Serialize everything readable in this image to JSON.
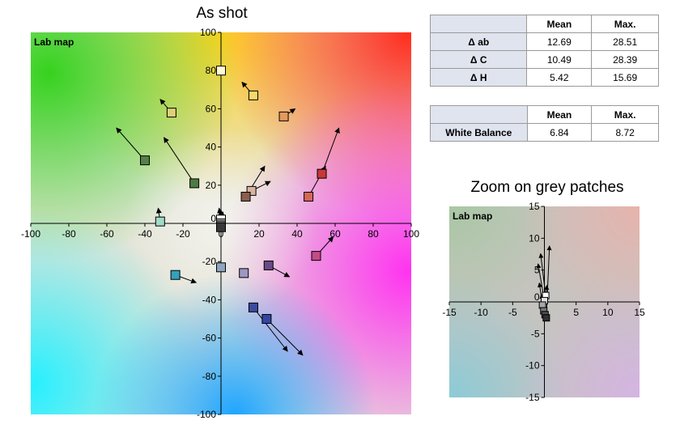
{
  "charts": {
    "main": {
      "title": "As shot",
      "plot_label": "Lab map",
      "x_ticks": [
        "-100",
        "-80",
        "-60",
        "-40",
        "-20",
        "0",
        "20",
        "40",
        "60",
        "80",
        "100"
      ],
      "y_ticks": [
        "100",
        "80",
        "60",
        "40",
        "20",
        "0",
        "-20",
        "-40",
        "-60",
        "-80",
        "-100"
      ]
    },
    "zoom": {
      "title": "Zoom on grey patches",
      "plot_label": "Lab map",
      "x_ticks": [
        "-15",
        "-10",
        "-5",
        "0",
        "5",
        "10",
        "15"
      ],
      "y_ticks": [
        "15",
        "10",
        "5",
        "0",
        "-5",
        "-10",
        "-15"
      ]
    }
  },
  "stats_table": {
    "headers": [
      "Mean",
      "Max."
    ],
    "rows": [
      {
        "label": "Δ ab",
        "mean": "12.69",
        "max": "28.51"
      },
      {
        "label": "Δ C",
        "mean": "10.49",
        "max": "28.39"
      },
      {
        "label": "Δ H",
        "mean": "5.42",
        "max": "15.69"
      }
    ]
  },
  "wb_table": {
    "headers": [
      "Mean",
      "Max."
    ],
    "rows": [
      {
        "label": "White Balance",
        "mean": "6.84",
        "max": "8.72"
      }
    ]
  },
  "chart_data": [
    {
      "type": "scatter",
      "title": "As shot",
      "subtitle": "Lab map",
      "xlabel": "",
      "ylabel": "",
      "xlim": [
        -100,
        100
      ],
      "ylim": [
        -100,
        100
      ],
      "grid": false,
      "legend": "none",
      "series": [
        {
          "points": [
            {
              "a": 0,
              "b": 80,
              "ta": 0,
              "tb": 80,
              "color": "#fff8d8"
            },
            {
              "a": 17,
              "b": 67,
              "ta": 11,
              "tb": 74,
              "color": "#f6d96a"
            },
            {
              "a": -26,
              "b": 58,
              "ta": -32,
              "tb": 65,
              "color": "#ddd077"
            },
            {
              "a": 33,
              "b": 56,
              "ta": 39,
              "tb": 60,
              "color": "#e39a5d"
            },
            {
              "a": -40,
              "b": 33,
              "ta": -55,
              "tb": 50,
              "color": "#55804a"
            },
            {
              "a": -14,
              "b": 21,
              "ta": -30,
              "tb": 45,
              "color": "#4e7a43"
            },
            {
              "a": 53,
              "b": 26,
              "ta": 62,
              "tb": 50,
              "color": "#c83838"
            },
            {
              "a": 46,
              "b": 14,
              "ta": 55,
              "tb": 30,
              "color": "#d66659"
            },
            {
              "a": 16,
              "b": 17,
              "ta": 26,
              "tb": 22,
              "color": "#d8b4a0"
            },
            {
              "a": 13,
              "b": 14,
              "ta": 23,
              "tb": 30,
              "color": "#8a5f4c"
            },
            {
              "a": -32,
              "b": 1,
              "ta": -33,
              "tb": 8,
              "color": "#a2dac8"
            },
            {
              "a": 0,
              "b": 2,
              "ta": -1,
              "tb": 8,
              "color": "#ffffff"
            },
            {
              "a": 0,
              "b": 0,
              "ta": 0,
              "tb": 7,
              "color": "#c0c0c0"
            },
            {
              "a": 0,
              "b": -1,
              "ta": 1,
              "tb": 6,
              "color": "#808080"
            },
            {
              "a": 0,
              "b": -2,
              "ta": 0,
              "tb": 5,
              "color": "#383838"
            },
            {
              "a": 50,
              "b": -17,
              "ta": 59,
              "tb": -7,
              "color": "#c34c87"
            },
            {
              "a": -24,
              "b": -27,
              "ta": -13,
              "tb": -31,
              "color": "#33a1b9"
            },
            {
              "a": 0,
              "b": -23,
              "ta": 0,
              "tb": -23,
              "color": "#8fa5bd"
            },
            {
              "a": 12,
              "b": -26,
              "ta": 12,
              "tb": -26,
              "color": "#9d98c3"
            },
            {
              "a": 25,
              "b": -22,
              "ta": 36,
              "tb": -28,
              "color": "#6a4a86"
            },
            {
              "a": 17,
              "b": -44,
              "ta": 35,
              "tb": -67,
              "color": "#3b4c9f"
            },
            {
              "a": 24,
              "b": -50,
              "ta": 43,
              "tb": -69,
              "color": "#3446a4"
            }
          ]
        }
      ]
    },
    {
      "type": "scatter",
      "title": "Zoom on grey patches",
      "subtitle": "Lab map",
      "xlabel": "",
      "ylabel": "",
      "xlim": [
        -15,
        15
      ],
      "ylim": [
        -15,
        15
      ],
      "grid": false,
      "legend": "none",
      "series": [
        {
          "points": [
            {
              "a": 0.2,
              "b": 1.0,
              "ta": -0.6,
              "tb": 7.6,
              "color": "#ffffff"
            },
            {
              "a": 0.0,
              "b": 0.2,
              "ta": -1.0,
              "tb": 6.0,
              "color": "#e0e0e0"
            },
            {
              "a": -0.3,
              "b": -0.5,
              "ta": -0.8,
              "tb": 3.0,
              "color": "#a8a8a8"
            },
            {
              "a": -0.1,
              "b": -1.4,
              "ta": -0.5,
              "tb": 1.2,
              "color": "#787878"
            },
            {
              "a": 0.1,
              "b": -2.0,
              "ta": 0.4,
              "tb": 2.6,
              "color": "#505050"
            },
            {
              "a": 0.3,
              "b": -2.5,
              "ta": 0.8,
              "tb": 8.8,
              "color": "#303030"
            }
          ]
        }
      ]
    }
  ]
}
